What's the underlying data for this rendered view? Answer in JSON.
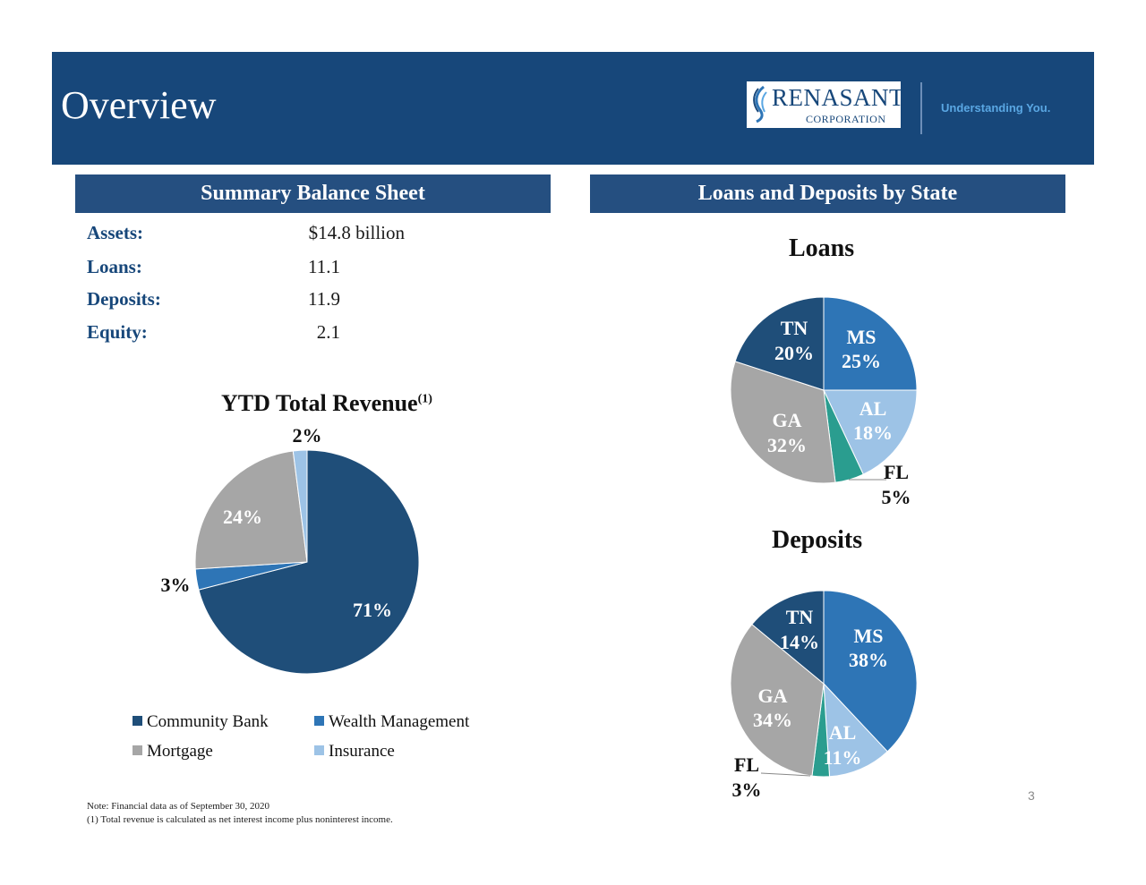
{
  "header": {
    "title": "Overview",
    "logo_name": "RENASANT",
    "logo_sub": "CORPORATION",
    "tagline": "Understanding You.",
    "background": "#17477a"
  },
  "left_section": {
    "title": "Summary Balance Sheet"
  },
  "right_section": {
    "title": "Loans and Deposits by State"
  },
  "balance_sheet": [
    {
      "label": "Assets:",
      "value": "$14.8 billion"
    },
    {
      "label": "Loans:",
      "value": "11.1"
    },
    {
      "label": "Deposits:",
      "value": "11.9"
    },
    {
      "label": "Equity:",
      "value": "2.1"
    }
  ],
  "revenue": {
    "title": "YTD Total Revenue",
    "superscript": "(1)"
  },
  "loans": {
    "title": "Loans"
  },
  "deposits": {
    "title": "Deposits"
  },
  "chart_data": [
    {
      "type": "pie",
      "title": "YTD Total Revenue(1)",
      "slices": [
        {
          "name": "Community Bank",
          "value": 71,
          "label": "71%",
          "color": "#1f4e79"
        },
        {
          "name": "Wealth Management",
          "value": 3,
          "label": "3%",
          "color": "#2e75b6"
        },
        {
          "name": "Mortgage",
          "value": 24,
          "label": "24%",
          "color": "#a6a6a6"
        },
        {
          "name": "Insurance",
          "value": 2,
          "label": "2%",
          "color": "#9dc3e6"
        }
      ],
      "legend": [
        "Community Bank",
        "Wealth Management",
        "Mortgage",
        "Insurance"
      ],
      "legend_position": "bottom"
    },
    {
      "type": "pie",
      "title": "Loans",
      "slices": [
        {
          "name": "MS",
          "value": 25,
          "label": "25%",
          "color": "#2e75b6"
        },
        {
          "name": "AL",
          "value": 18,
          "label": "18%",
          "color": "#9dc3e6"
        },
        {
          "name": "FL",
          "value": 5,
          "label": "5%",
          "color": "#2a9d8f"
        },
        {
          "name": "GA",
          "value": 32,
          "label": "32%",
          "color": "#a6a6a6"
        },
        {
          "name": "TN",
          "value": 20,
          "label": "20%",
          "color": "#1f4e79"
        }
      ]
    },
    {
      "type": "pie",
      "title": "Deposits",
      "slices": [
        {
          "name": "MS",
          "value": 38,
          "label": "38%",
          "color": "#2e75b6"
        },
        {
          "name": "AL",
          "value": 11,
          "label": "11%",
          "color": "#9dc3e6"
        },
        {
          "name": "FL",
          "value": 3,
          "label": "3%",
          "color": "#2a9d8f"
        },
        {
          "name": "GA",
          "value": 34,
          "label": "34%",
          "color": "#a6a6a6"
        },
        {
          "name": "TN",
          "value": 14,
          "label": "14%",
          "color": "#1f4e79"
        }
      ]
    }
  ],
  "page_number": "3",
  "footnotes": [
    "Note: Financial data as of September 30, 2020",
    "(1) Total revenue is calculated as net interest income plus noninterest income."
  ]
}
